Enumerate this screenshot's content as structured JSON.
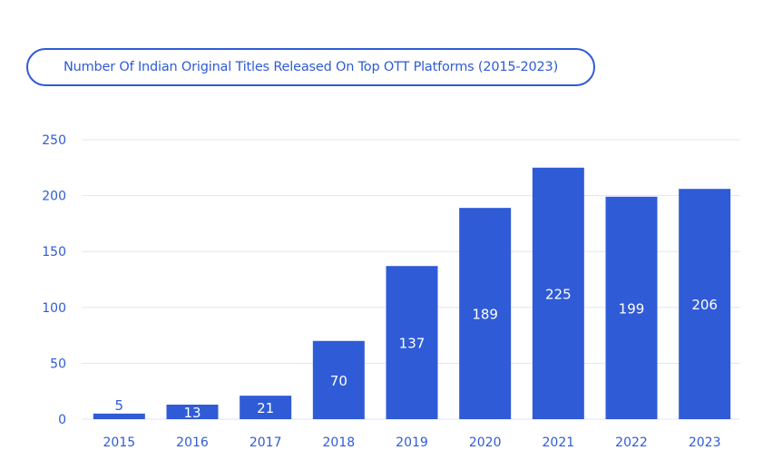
{
  "chart_data": {
    "type": "bar",
    "title": "Number Of Indian Original Titles Released On Top OTT Platforms (2015-2023)",
    "categories": [
      "2015",
      "2016",
      "2017",
      "2018",
      "2019",
      "2020",
      "2021",
      "2022",
      "2023"
    ],
    "values": [
      5,
      13,
      21,
      70,
      137,
      189,
      225,
      199,
      206
    ],
    "ylim": [
      0,
      250
    ],
    "yticks": [
      0,
      50,
      100,
      150,
      200,
      250
    ],
    "grid": true,
    "xlabel": "",
    "ylabel": "",
    "colors": {
      "bar": "#2f5bd6",
      "text": "#2f5bd6",
      "grid": "#dfe6f7",
      "label": "#ffffff"
    }
  }
}
